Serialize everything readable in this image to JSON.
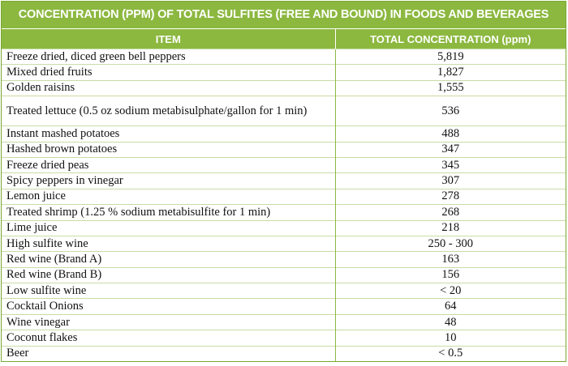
{
  "title": "CONCENTRATION (PPM) OF TOTAL SULFITES (FREE AND BOUND) IN FOODS AND BEVERAGES",
  "headers": {
    "item": "ITEM",
    "concentration": "TOTAL CONCENTRATION (ppm)"
  },
  "colors": {
    "header_green": "#8cb840",
    "border_green": "#7aa832"
  },
  "rows": [
    {
      "item": "Freeze dried, diced green bell peppers",
      "value": "5,819"
    },
    {
      "item": "Mixed dried fruits",
      "value": "1,827"
    },
    {
      "item": "Golden raisins",
      "value": "1,555"
    },
    {
      "item": "Treated lettuce (0.5 oz sodium metabisulphate/gallon for 1 min)",
      "value": "536"
    },
    {
      "item": "Instant mashed potatoes",
      "value": "488"
    },
    {
      "item": "Hashed brown potatoes",
      "value": "347"
    },
    {
      "item": "Freeze dried peas",
      "value": "345"
    },
    {
      "item": "Spicy peppers  in vinegar",
      "value": "307"
    },
    {
      "item": "Lemon juice",
      "value": "278"
    },
    {
      "item": "Treated shrimp (1.25 % sodium metabisulfite for 1 min)",
      "value": "268"
    },
    {
      "item": "Lime juice",
      "value": "218"
    },
    {
      "item": "High sulfite wine",
      "value": "250 - 300"
    },
    {
      "item": "Red wine (Brand A)",
      "value": "163"
    },
    {
      "item": "Red wine (Brand B)",
      "value": "156"
    },
    {
      "item": "Low sulfite wine",
      "value": "< 20"
    },
    {
      "item": "Cocktail Onions",
      "value": "64"
    },
    {
      "item": "Wine vinegar",
      "value": "48"
    },
    {
      "item": "Coconut flakes",
      "value": "10"
    },
    {
      "item": "Beer",
      "value": "< 0.5"
    }
  ]
}
